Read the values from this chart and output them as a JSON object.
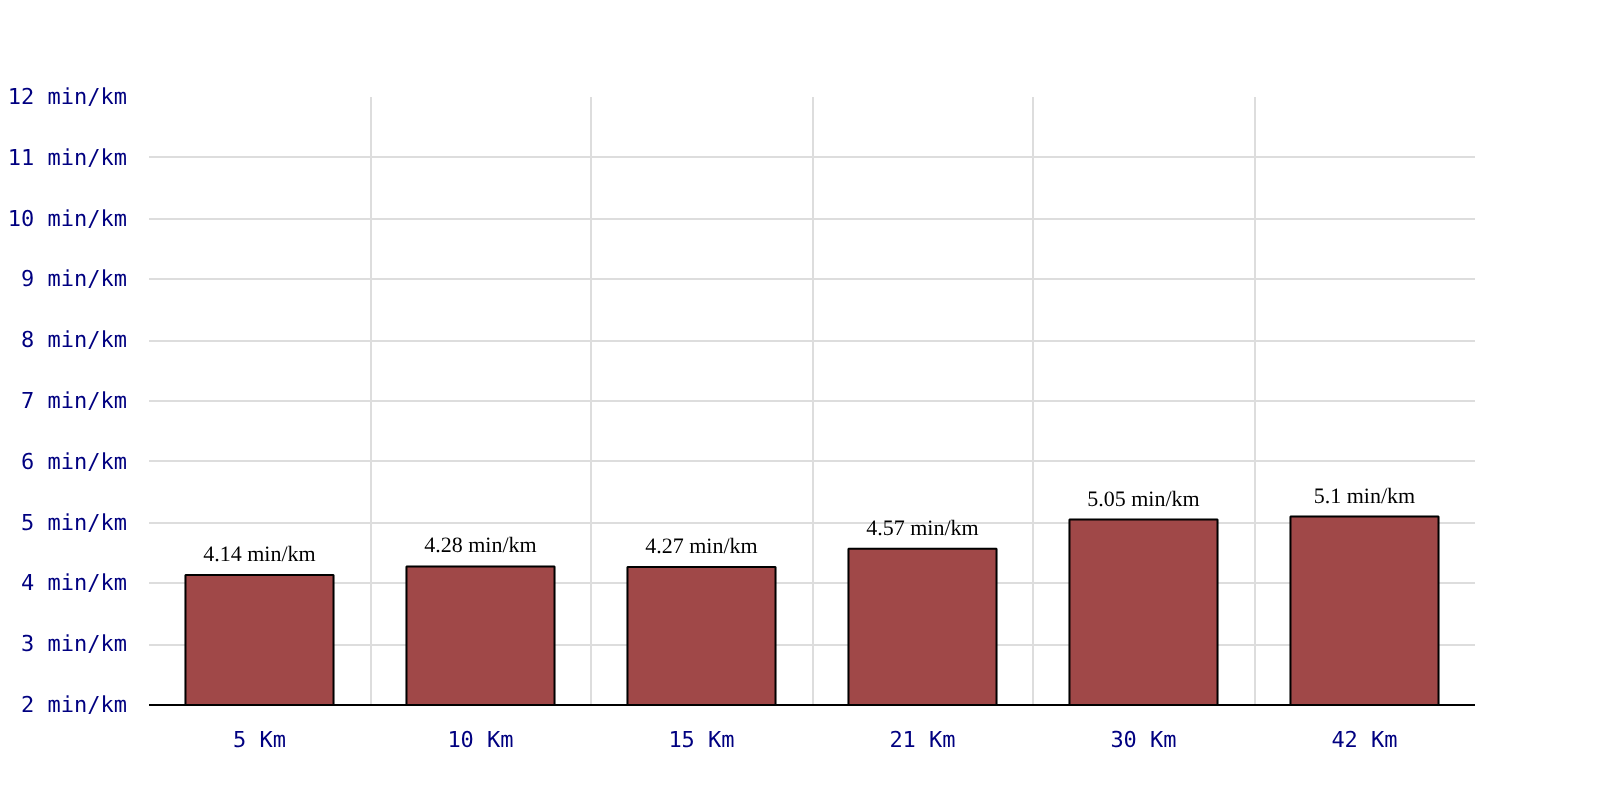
{
  "chart_data": {
    "type": "bar",
    "categories": [
      "5 Km",
      "10 Km",
      "15 Km",
      "21 Km",
      "30 Km",
      "42 Km"
    ],
    "values": [
      4.14,
      4.28,
      4.27,
      4.57,
      5.05,
      5.1
    ],
    "value_labels": [
      "4.14 min/km",
      "4.28 min/km",
      "4.27 min/km",
      "4.57 min/km",
      "5.05 min/km",
      "5.1 min/km"
    ],
    "color": "#a04848",
    "ylim": [
      2,
      12
    ],
    "yticks": [
      {
        "value": 2,
        "label": "2 min/km"
      },
      {
        "value": 3,
        "label": "3 min/km"
      },
      {
        "value": 4,
        "label": "4 min/km"
      },
      {
        "value": 5,
        "label": "5 min/km"
      },
      {
        "value": 6,
        "label": "6 min/km"
      },
      {
        "value": 7,
        "label": "7 min/km"
      },
      {
        "value": 8,
        "label": "8 min/km"
      },
      {
        "value": 9,
        "label": "9 min/km"
      },
      {
        "value": 10,
        "label": "10 min/km"
      },
      {
        "value": 11,
        "label": "11 min/km"
      },
      {
        "value": 12,
        "label": "12 min/km"
      }
    ],
    "grid": true
  }
}
